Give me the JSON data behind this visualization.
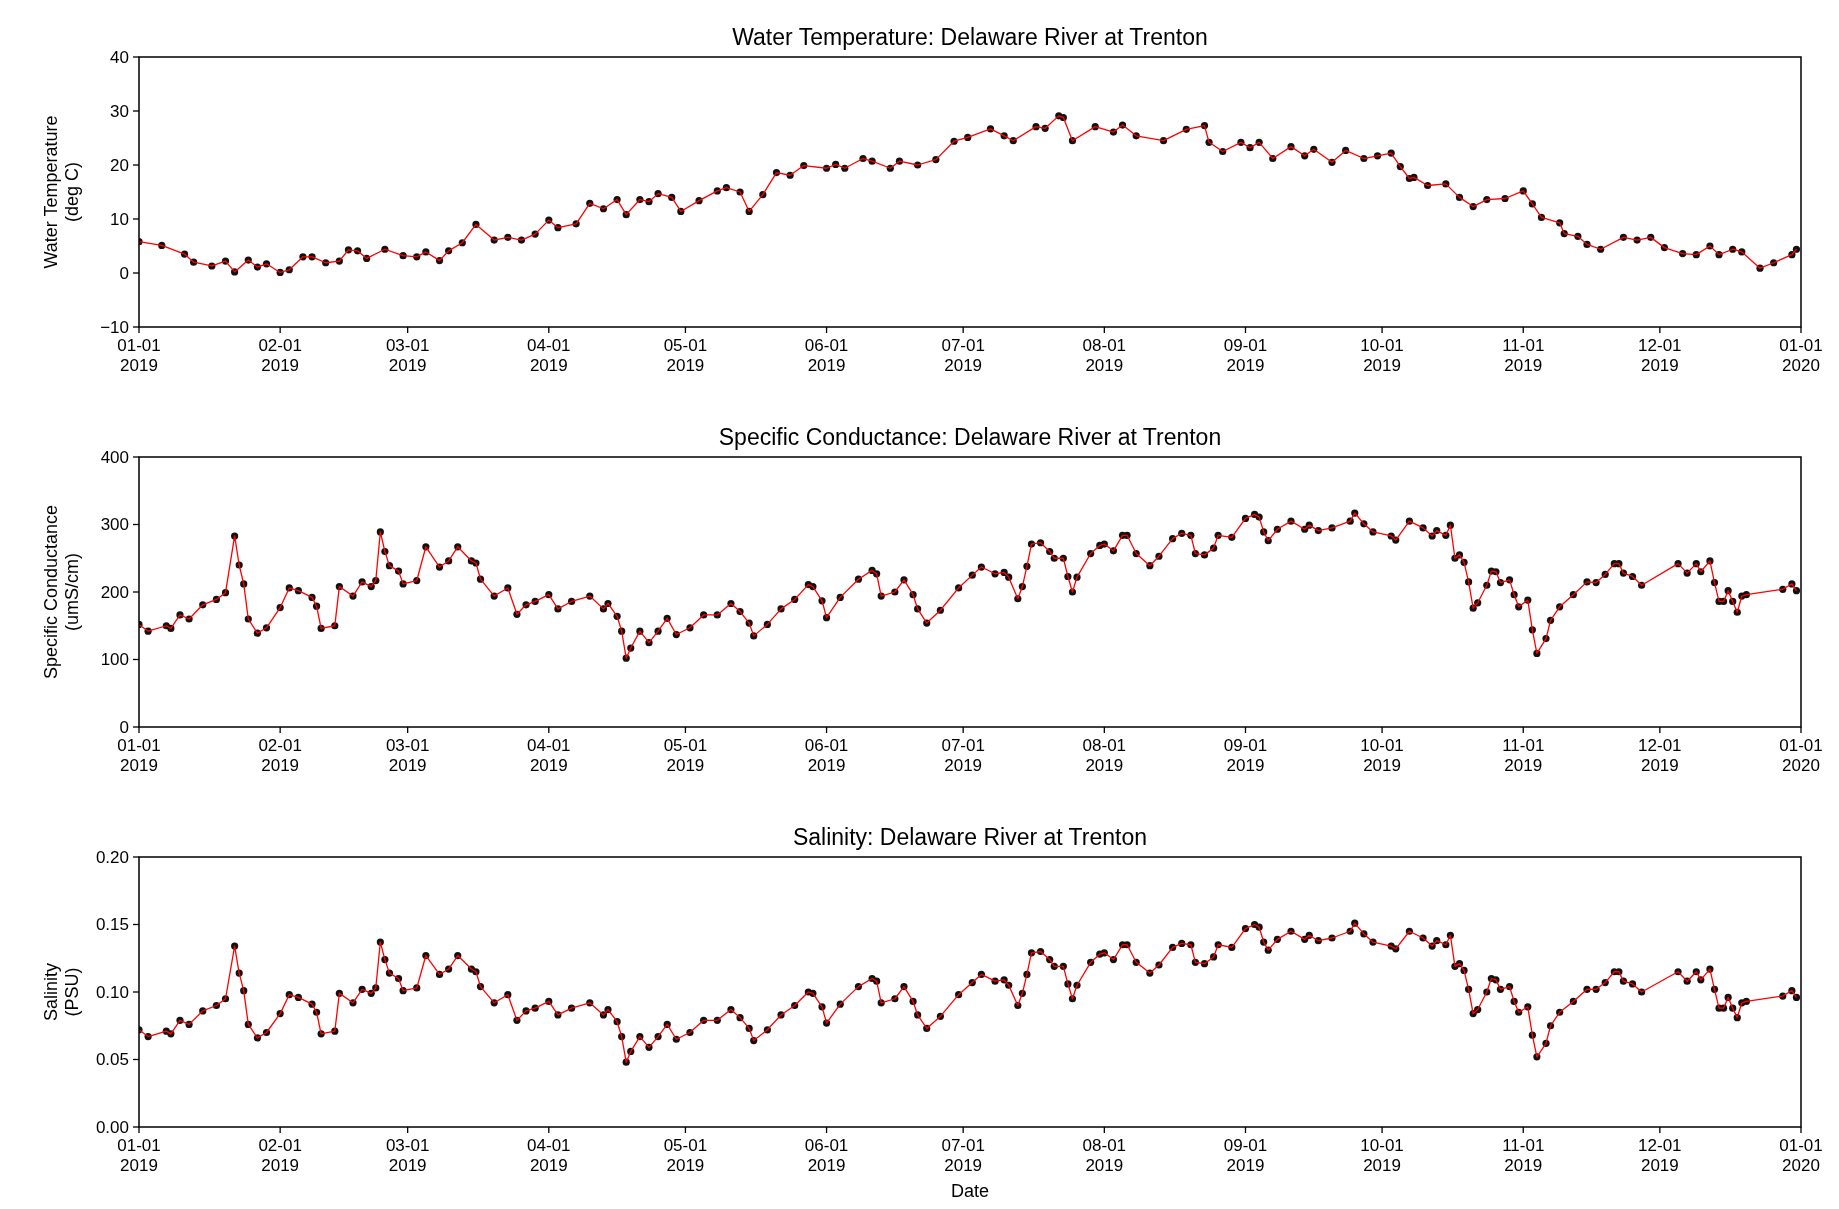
{
  "chart_data": [
    {
      "type": "line",
      "title": "Water Temperature: Delaware River at Trenton",
      "ylabel": "Water Temperature\n(deg C)",
      "marker": "circle",
      "line_style": "solid",
      "xlim": [
        "2019-01-01",
        "2020-01-01"
      ],
      "xticks": [
        {
          "value": "2019-01-01",
          "label": "01-01\n2019"
        },
        {
          "value": "2019-02-01",
          "label": "02-01\n2019"
        },
        {
          "value": "2019-03-01",
          "label": "03-01\n2019"
        },
        {
          "value": "2019-04-01",
          "label": "04-01\n2019"
        },
        {
          "value": "2019-05-01",
          "label": "05-01\n2019"
        },
        {
          "value": "2019-06-01",
          "label": "06-01\n2019"
        },
        {
          "value": "2019-07-01",
          "label": "07-01\n2019"
        },
        {
          "value": "2019-08-01",
          "label": "08-01\n2019"
        },
        {
          "value": "2019-09-01",
          "label": "09-01\n2019"
        },
        {
          "value": "2019-10-01",
          "label": "10-01\n2019"
        },
        {
          "value": "2019-11-01",
          "label": "11-01\n2019"
        },
        {
          "value": "2019-12-01",
          "label": "12-01\n2019"
        },
        {
          "value": "2020-01-01",
          "label": "01-01\n2020"
        }
      ],
      "ylim": [
        -10,
        40
      ],
      "yticks": [
        {
          "value": -10,
          "label": "−10"
        },
        0,
        10,
        20,
        30,
        40
      ],
      "series": [
        {
          "color": "#ff0000",
          "x": [
            "2019-01-01",
            "2019-01-06",
            "2019-01-11",
            "2019-01-13",
            "2019-01-17",
            "2019-01-20",
            "2019-01-22",
            "2019-01-25",
            "2019-01-27",
            "2019-01-29",
            "2019-02-01",
            "2019-02-03",
            "2019-02-06",
            "2019-02-08",
            "2019-02-11",
            "2019-02-14",
            "2019-02-16",
            "2019-02-18",
            "2019-02-20",
            "2019-02-24",
            "2019-02-28",
            "2019-03-03",
            "2019-03-05",
            "2019-03-08",
            "2019-03-10",
            "2019-03-13",
            "2019-03-16",
            "2019-03-20",
            "2019-03-23",
            "2019-03-26",
            "2019-03-29",
            "2019-04-01",
            "2019-04-03",
            "2019-04-07",
            "2019-04-10",
            "2019-04-13",
            "2019-04-16",
            "2019-04-18",
            "2019-04-21",
            "2019-04-23",
            "2019-04-25",
            "2019-04-28",
            "2019-04-30",
            "2019-05-04",
            "2019-05-08",
            "2019-05-10",
            "2019-05-13",
            "2019-05-15",
            "2019-05-18",
            "2019-05-21",
            "2019-05-24",
            "2019-05-27",
            "2019-06-01",
            "2019-06-03",
            "2019-06-05",
            "2019-06-09",
            "2019-06-11",
            "2019-06-15",
            "2019-06-17",
            "2019-06-21",
            "2019-06-25",
            "2019-06-29",
            "2019-07-02",
            "2019-07-07",
            "2019-07-10",
            "2019-07-12",
            "2019-07-17",
            "2019-07-19",
            "2019-07-22",
            "2019-07-23",
            "2019-07-25",
            "2019-07-30",
            "2019-08-03",
            "2019-08-05",
            "2019-08-08",
            "2019-08-14",
            "2019-08-19",
            "2019-08-23",
            "2019-08-24",
            "2019-08-27",
            "2019-08-31",
            "2019-09-02",
            "2019-09-04",
            "2019-09-07",
            "2019-09-11",
            "2019-09-14",
            "2019-09-16",
            "2019-09-20",
            "2019-09-23",
            "2019-09-27",
            "2019-09-30",
            "2019-10-03",
            "2019-10-05",
            "2019-10-07",
            "2019-10-08",
            "2019-10-11",
            "2019-10-15",
            "2019-10-18",
            "2019-10-21",
            "2019-10-24",
            "2019-10-28",
            "2019-11-01",
            "2019-11-03",
            "2019-11-05",
            "2019-11-09",
            "2019-11-10",
            "2019-11-13",
            "2019-11-15",
            "2019-11-18",
            "2019-11-23",
            "2019-11-26",
            "2019-11-29",
            "2019-12-02",
            "2019-12-06",
            "2019-12-09",
            "2019-12-12",
            "2019-12-14",
            "2019-12-17",
            "2019-12-19",
            "2019-12-23",
            "2019-12-26",
            "2019-12-30",
            "2019-12-31"
          ],
          "values": [
            5.8,
            5.1,
            3.5,
            2,
            1.3,
            2.2,
            0.2,
            2.4,
            1.1,
            1.7,
            0.1,
            0.6,
            3,
            3,
            1.9,
            2.2,
            4.3,
            4.1,
            2.7,
            4.4,
            3.2,
            3,
            3.9,
            2.3,
            4.1,
            5.6,
            9,
            6.1,
            6.6,
            6.1,
            7.2,
            9.8,
            8.4,
            9.1,
            12.9,
            11.9,
            13.6,
            10.8,
            13.6,
            13.2,
            14.7,
            14,
            11.4,
            13.4,
            15.2,
            15.8,
            15,
            11.4,
            14.5,
            18.6,
            18.1,
            19.9,
            19.4,
            20.1,
            19.4,
            21.2,
            20.7,
            19.4,
            20.7,
            20,
            21,
            24.4,
            25.1,
            26.7,
            25.4,
            24.5,
            27.1,
            26.8,
            29.1,
            28.8,
            24.5,
            27.1,
            26.1,
            27.4,
            25.4,
            24.5,
            26.6,
            27.3,
            24.2,
            22.5,
            24.2,
            23.2,
            24.2,
            21.2,
            23.4,
            21.7,
            22.9,
            20.5,
            22.7,
            21.2,
            21.7,
            22.2,
            19.7,
            17.5,
            17.7,
            16.2,
            16.5,
            14,
            12.3,
            13.6,
            13.8,
            15.2,
            12.8,
            10.3,
            9.3,
            7.3,
            6.8,
            5.3,
            4.4,
            6.6,
            6.1,
            6.6,
            4.7,
            3.6,
            3.4,
            5,
            3.4,
            4.4,
            3.9,
            0.9,
            1.9,
            3.4,
            4.4
          ]
        }
      ]
    },
    {
      "type": "line",
      "title": "Specific Conductance: Delaware River at Trenton",
      "ylabel": "Specific Conductance\n(umS/cm)",
      "marker": "circle",
      "line_style": "solid",
      "xlim": [
        "2019-01-01",
        "2020-01-01"
      ],
      "xticks": [
        {
          "value": "2019-01-01",
          "label": "01-01\n2019"
        },
        {
          "value": "2019-02-01",
          "label": "02-01\n2019"
        },
        {
          "value": "2019-03-01",
          "label": "03-01\n2019"
        },
        {
          "value": "2019-04-01",
          "label": "04-01\n2019"
        },
        {
          "value": "2019-05-01",
          "label": "05-01\n2019"
        },
        {
          "value": "2019-06-01",
          "label": "06-01\n2019"
        },
        {
          "value": "2019-07-01",
          "label": "07-01\n2019"
        },
        {
          "value": "2019-08-01",
          "label": "08-01\n2019"
        },
        {
          "value": "2019-09-01",
          "label": "09-01\n2019"
        },
        {
          "value": "2019-10-01",
          "label": "10-01\n2019"
        },
        {
          "value": "2019-11-01",
          "label": "11-01\n2019"
        },
        {
          "value": "2019-12-01",
          "label": "12-01\n2019"
        },
        {
          "value": "2020-01-01",
          "label": "01-01\n2020"
        }
      ],
      "ylim": [
        0,
        400
      ],
      "yticks": [
        0,
        100,
        200,
        300,
        400
      ],
      "series": [
        {
          "color": "#ff0000",
          "x": [
            "2019-01-01",
            "2019-01-03",
            "2019-01-07",
            "2019-01-08",
            "2019-01-10",
            "2019-01-12",
            "2019-01-15",
            "2019-01-18",
            "2019-01-20",
            "2019-01-22",
            "2019-01-23",
            "2019-01-24",
            "2019-01-25",
            "2019-01-27",
            "2019-01-29",
            "2019-02-01",
            "2019-02-03",
            "2019-02-05",
            "2019-02-08",
            "2019-02-09",
            "2019-02-10",
            "2019-02-13",
            "2019-02-14",
            "2019-02-17",
            "2019-02-19",
            "2019-02-21",
            "2019-02-22",
            "2019-02-23",
            "2019-02-24",
            "2019-02-25",
            "2019-02-27",
            "2019-02-28",
            "2019-03-03",
            "2019-03-05",
            "2019-03-08",
            "2019-03-10",
            "2019-03-12",
            "2019-03-15",
            "2019-03-16",
            "2019-03-17",
            "2019-03-20",
            "2019-03-23",
            "2019-03-25",
            "2019-03-27",
            "2019-03-29",
            "2019-04-01",
            "2019-04-03",
            "2019-04-06",
            "2019-04-10",
            "2019-04-13",
            "2019-04-14",
            "2019-04-16",
            "2019-04-17",
            "2019-04-18",
            "2019-04-19",
            "2019-04-21",
            "2019-04-23",
            "2019-04-25",
            "2019-04-27",
            "2019-04-29",
            "2019-05-02",
            "2019-05-05",
            "2019-05-08",
            "2019-05-11",
            "2019-05-13",
            "2019-05-15",
            "2019-05-16",
            "2019-05-19",
            "2019-05-22",
            "2019-05-25",
            "2019-05-28",
            "2019-05-29",
            "2019-05-31",
            "2019-06-01",
            "2019-06-04",
            "2019-06-08",
            "2019-06-11",
            "2019-06-12",
            "2019-06-13",
            "2019-06-16",
            "2019-06-18",
            "2019-06-20",
            "2019-06-21",
            "2019-06-23",
            "2019-06-26",
            "2019-06-30",
            "2019-07-03",
            "2019-07-05",
            "2019-07-08",
            "2019-07-10",
            "2019-07-11",
            "2019-07-13",
            "2019-07-14",
            "2019-07-15",
            "2019-07-16",
            "2019-07-18",
            "2019-07-20",
            "2019-07-21",
            "2019-07-23",
            "2019-07-24",
            "2019-07-25",
            "2019-07-26",
            "2019-07-29",
            "2019-07-31",
            "2019-08-01",
            "2019-08-03",
            "2019-08-05",
            "2019-08-06",
            "2019-08-08",
            "2019-08-11",
            "2019-08-13",
            "2019-08-16",
            "2019-08-18",
            "2019-08-20",
            "2019-08-21",
            "2019-08-23",
            "2019-08-25",
            "2019-08-26",
            "2019-08-29",
            "2019-09-01",
            "2019-09-03",
            "2019-09-04",
            "2019-09-05",
            "2019-09-06",
            "2019-09-08",
            "2019-09-11",
            "2019-09-14",
            "2019-09-15",
            "2019-09-17",
            "2019-09-20",
            "2019-09-24",
            "2019-09-25",
            "2019-09-27",
            "2019-09-29",
            "2019-10-03",
            "2019-10-04",
            "2019-10-07",
            "2019-10-10",
            "2019-10-12",
            "2019-10-13",
            "2019-10-15",
            "2019-10-16",
            "2019-10-17",
            "2019-10-18",
            "2019-10-19",
            "2019-10-20",
            "2019-10-21",
            "2019-10-22",
            "2019-10-24",
            "2019-10-25",
            "2019-10-26",
            "2019-10-27",
            "2019-10-29",
            "2019-10-30",
            "2019-10-31",
            "2019-11-02",
            "2019-11-03",
            "2019-11-04",
            "2019-11-06",
            "2019-11-07",
            "2019-11-09",
            "2019-11-12",
            "2019-11-15",
            "2019-11-17",
            "2019-11-19",
            "2019-11-21",
            "2019-11-22",
            "2019-11-23",
            "2019-11-25",
            "2019-11-27",
            "2019-12-05",
            "2019-12-07",
            "2019-12-09",
            "2019-12-10",
            "2019-12-12",
            "2019-12-13",
            "2019-12-14",
            "2019-12-15",
            "2019-12-16",
            "2019-12-17",
            "2019-12-18",
            "2019-12-19",
            "2019-12-20",
            "2019-12-28",
            "2019-12-30",
            "2019-12-31"
          ],
          "values": [
            152,
            142,
            150,
            146,
            166,
            160,
            181,
            189,
            199,
            283,
            240,
            212,
            160,
            139,
            147,
            177,
            206,
            202,
            192,
            179,
            146,
            150,
            208,
            194,
            215,
            208,
            217,
            289,
            260,
            239,
            231,
            212,
            217,
            267,
            237,
            246,
            267,
            246,
            243,
            219,
            194,
            206,
            167,
            181,
            186,
            196,
            175,
            186,
            194,
            175,
            183,
            164,
            142,
            102,
            117,
            142,
            125,
            142,
            161,
            137,
            147,
            166,
            166,
            183,
            171,
            154,
            135,
            152,
            175,
            189,
            211,
            208,
            187,
            162,
            192,
            219,
            232,
            227,
            194,
            200,
            218,
            196,
            175,
            154,
            173,
            206,
            225,
            237,
            227,
            229,
            222,
            190,
            208,
            238,
            271,
            273,
            260,
            250,
            250,
            223,
            200,
            222,
            257,
            269,
            271,
            261,
            284,
            284,
            257,
            239,
            253,
            279,
            287,
            284,
            257,
            255,
            265,
            284,
            281,
            309,
            315,
            311,
            289,
            276,
            293,
            305,
            293,
            299,
            291,
            295,
            305,
            317,
            301,
            289,
            283,
            277,
            305,
            295,
            283,
            291,
            284,
            299,
            250,
            255,
            244,
            215,
            176,
            184,
            210,
            231,
            230,
            214,
            218,
            196,
            178,
            188,
            144,
            109,
            131,
            158,
            178,
            196,
            215,
            214,
            226,
            242,
            242,
            228,
            223,
            210,
            242,
            228,
            242,
            230,
            246,
            214,
            186,
            186,
            202,
            186,
            170,
            194,
            196,
            204,
            212,
            202
          ]
        }
      ]
    },
    {
      "type": "line",
      "title": "Salinity: Delaware River at Trenton",
      "xlabel": "Date",
      "ylabel": "Salinity\n(PSU)",
      "marker": "circle",
      "line_style": "solid",
      "xlim": [
        "2019-01-01",
        "2020-01-01"
      ],
      "xticks": [
        {
          "value": "2019-01-01",
          "label": "01-01\n2019"
        },
        {
          "value": "2019-02-01",
          "label": "02-01\n2019"
        },
        {
          "value": "2019-03-01",
          "label": "03-01\n2019"
        },
        {
          "value": "2019-04-01",
          "label": "04-01\n2019"
        },
        {
          "value": "2019-05-01",
          "label": "05-01\n2019"
        },
        {
          "value": "2019-06-01",
          "label": "06-01\n2019"
        },
        {
          "value": "2019-07-01",
          "label": "07-01\n2019"
        },
        {
          "value": "2019-08-01",
          "label": "08-01\n2019"
        },
        {
          "value": "2019-09-01",
          "label": "09-01\n2019"
        },
        {
          "value": "2019-10-01",
          "label": "10-01\n2019"
        },
        {
          "value": "2019-11-01",
          "label": "11-01\n2019"
        },
        {
          "value": "2019-12-01",
          "label": "12-01\n2019"
        },
        {
          "value": "2020-01-01",
          "label": "01-01\n2020"
        }
      ],
      "ylim": [
        0,
        0.2
      ],
      "yticks": [
        {
          "value": 0,
          "label": "0.00"
        },
        {
          "value": 0.05,
          "label": "0.05"
        },
        {
          "value": 0.1,
          "label": "0.10"
        },
        {
          "value": 0.15,
          "label": "0.15"
        },
        {
          "value": 0.2,
          "label": "0.20"
        }
      ],
      "series": [
        {
          "color": "#ff0000",
          "x": [
            "2019-01-01",
            "2019-01-03",
            "2019-01-07",
            "2019-01-08",
            "2019-01-10",
            "2019-01-12",
            "2019-01-15",
            "2019-01-18",
            "2019-01-20",
            "2019-01-22",
            "2019-01-23",
            "2019-01-24",
            "2019-01-25",
            "2019-01-27",
            "2019-01-29",
            "2019-02-01",
            "2019-02-03",
            "2019-02-05",
            "2019-02-08",
            "2019-02-09",
            "2019-02-10",
            "2019-02-13",
            "2019-02-14",
            "2019-02-17",
            "2019-02-19",
            "2019-02-21",
            "2019-02-22",
            "2019-02-23",
            "2019-02-24",
            "2019-02-25",
            "2019-02-27",
            "2019-02-28",
            "2019-03-03",
            "2019-03-05",
            "2019-03-08",
            "2019-03-10",
            "2019-03-12",
            "2019-03-15",
            "2019-03-16",
            "2019-03-17",
            "2019-03-20",
            "2019-03-23",
            "2019-03-25",
            "2019-03-27",
            "2019-03-29",
            "2019-04-01",
            "2019-04-03",
            "2019-04-06",
            "2019-04-10",
            "2019-04-13",
            "2019-04-14",
            "2019-04-16",
            "2019-04-17",
            "2019-04-18",
            "2019-04-19",
            "2019-04-21",
            "2019-04-23",
            "2019-04-25",
            "2019-04-27",
            "2019-04-29",
            "2019-05-02",
            "2019-05-05",
            "2019-05-08",
            "2019-05-11",
            "2019-05-13",
            "2019-05-15",
            "2019-05-16",
            "2019-05-19",
            "2019-05-22",
            "2019-05-25",
            "2019-05-28",
            "2019-05-29",
            "2019-05-31",
            "2019-06-01",
            "2019-06-04",
            "2019-06-08",
            "2019-06-11",
            "2019-06-12",
            "2019-06-13",
            "2019-06-16",
            "2019-06-18",
            "2019-06-20",
            "2019-06-21",
            "2019-06-23",
            "2019-06-26",
            "2019-06-30",
            "2019-07-03",
            "2019-07-05",
            "2019-07-08",
            "2019-07-10",
            "2019-07-11",
            "2019-07-13",
            "2019-07-14",
            "2019-07-15",
            "2019-07-16",
            "2019-07-18",
            "2019-07-20",
            "2019-07-21",
            "2019-07-23",
            "2019-07-24",
            "2019-07-25",
            "2019-07-26",
            "2019-07-29",
            "2019-07-31",
            "2019-08-01",
            "2019-08-03",
            "2019-08-05",
            "2019-08-06",
            "2019-08-08",
            "2019-08-11",
            "2019-08-13",
            "2019-08-16",
            "2019-08-18",
            "2019-08-20",
            "2019-08-21",
            "2019-08-23",
            "2019-08-25",
            "2019-08-26",
            "2019-08-29",
            "2019-09-01",
            "2019-09-03",
            "2019-09-04",
            "2019-09-05",
            "2019-09-06",
            "2019-09-08",
            "2019-09-11",
            "2019-09-14",
            "2019-09-15",
            "2019-09-17",
            "2019-09-20",
            "2019-09-24",
            "2019-09-25",
            "2019-09-27",
            "2019-09-29",
            "2019-10-03",
            "2019-10-04",
            "2019-10-07",
            "2019-10-10",
            "2019-10-12",
            "2019-10-13",
            "2019-10-15",
            "2019-10-16",
            "2019-10-17",
            "2019-10-18",
            "2019-10-19",
            "2019-10-20",
            "2019-10-21",
            "2019-10-22",
            "2019-10-24",
            "2019-10-25",
            "2019-10-26",
            "2019-10-27",
            "2019-10-29",
            "2019-10-30",
            "2019-10-31",
            "2019-11-02",
            "2019-11-03",
            "2019-11-04",
            "2019-11-06",
            "2019-11-07",
            "2019-11-09",
            "2019-11-12",
            "2019-11-15",
            "2019-11-17",
            "2019-11-19",
            "2019-11-21",
            "2019-11-22",
            "2019-11-23",
            "2019-11-25",
            "2019-11-27",
            "2019-12-05",
            "2019-12-07",
            "2019-12-09",
            "2019-12-10",
            "2019-12-12",
            "2019-12-13",
            "2019-12-14",
            "2019-12-15",
            "2019-12-16",
            "2019-12-17",
            "2019-12-18",
            "2019-12-19",
            "2019-12-20",
            "2019-12-28",
            "2019-12-30",
            "2019-12-31"
          ],
          "values": [
            0.072,
            0.067,
            0.071,
            0.069,
            0.079,
            0.076,
            0.086,
            0.09,
            0.095,
            0.134,
            0.114,
            0.101,
            0.076,
            0.066,
            0.07,
            0.084,
            0.098,
            0.096,
            0.091,
            0.085,
            0.069,
            0.071,
            0.099,
            0.092,
            0.102,
            0.099,
            0.103,
            0.137,
            0.124,
            0.114,
            0.11,
            0.101,
            0.103,
            0.127,
            0.113,
            0.117,
            0.127,
            0.117,
            0.115,
            0.104,
            0.092,
            0.098,
            0.079,
            0.086,
            0.088,
            0.093,
            0.083,
            0.088,
            0.092,
            0.083,
            0.087,
            0.078,
            0.067,
            0.048,
            0.056,
            0.067,
            0.059,
            0.067,
            0.076,
            0.065,
            0.07,
            0.079,
            0.079,
            0.087,
            0.081,
            0.073,
            0.064,
            0.072,
            0.083,
            0.09,
            0.1,
            0.099,
            0.089,
            0.077,
            0.091,
            0.104,
            0.11,
            0.108,
            0.092,
            0.095,
            0.104,
            0.093,
            0.083,
            0.073,
            0.082,
            0.098,
            0.107,
            0.113,
            0.108,
            0.109,
            0.105,
            0.09,
            0.099,
            0.113,
            0.129,
            0.13,
            0.124,
            0.119,
            0.119,
            0.106,
            0.095,
            0.105,
            0.122,
            0.128,
            0.129,
            0.124,
            0.135,
            0.135,
            0.122,
            0.114,
            0.12,
            0.133,
            0.136,
            0.135,
            0.122,
            0.121,
            0.126,
            0.135,
            0.133,
            0.147,
            0.15,
            0.148,
            0.137,
            0.131,
            0.139,
            0.145,
            0.139,
            0.142,
            0.138,
            0.14,
            0.145,
            0.151,
            0.143,
            0.137,
            0.134,
            0.132,
            0.145,
            0.14,
            0.134,
            0.138,
            0.135,
            0.142,
            0.119,
            0.121,
            0.116,
            0.102,
            0.084,
            0.087,
            0.1,
            0.11,
            0.109,
            0.102,
            0.104,
            0.093,
            0.085,
            0.089,
            0.068,
            0.052,
            0.062,
            0.075,
            0.085,
            0.093,
            0.102,
            0.102,
            0.107,
            0.115,
            0.115,
            0.108,
            0.106,
            0.1,
            0.115,
            0.108,
            0.115,
            0.109,
            0.117,
            0.102,
            0.088,
            0.088,
            0.096,
            0.088,
            0.081,
            0.092,
            0.093,
            0.097,
            0.101,
            0.096
          ]
        }
      ]
    }
  ]
}
